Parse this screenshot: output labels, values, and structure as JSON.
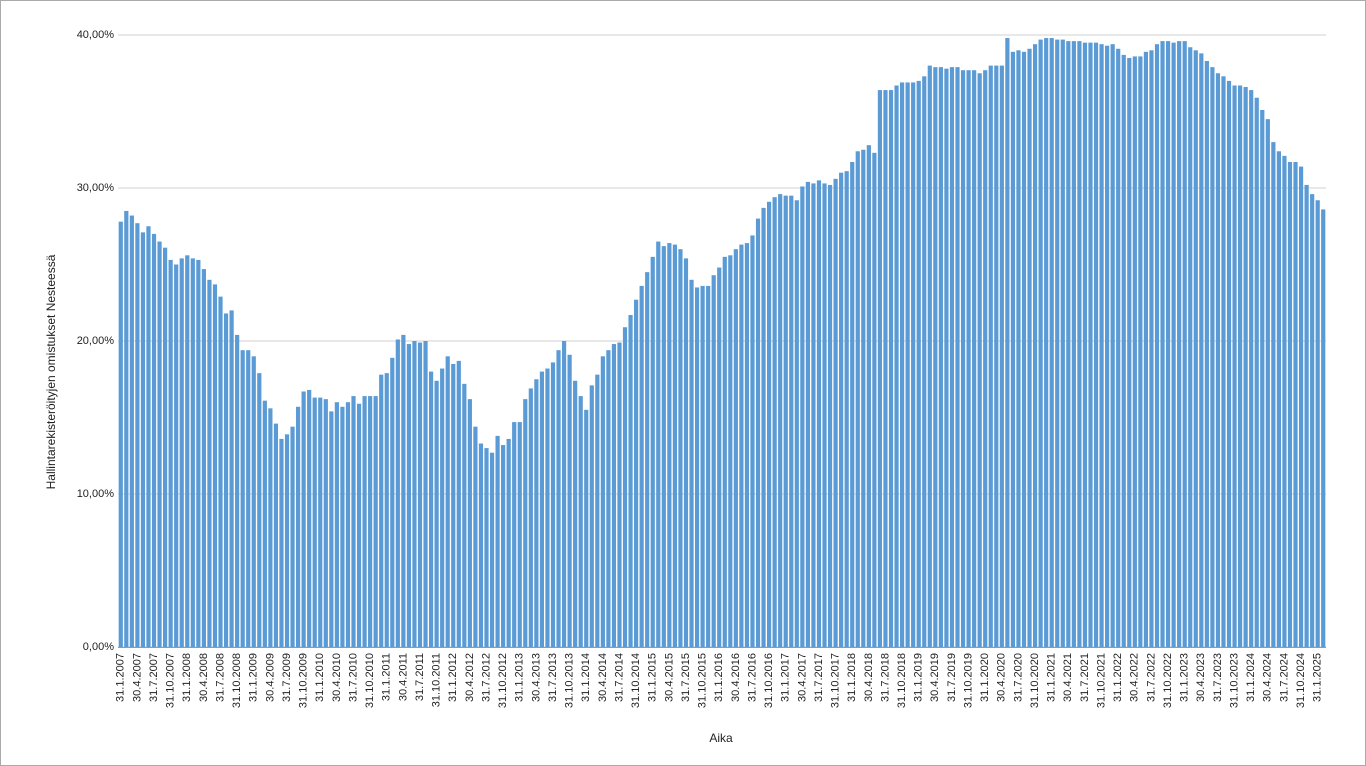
{
  "chart_data": {
    "type": "bar",
    "y_label": "Hallintarekisteröityjen omistukset Nesteessä",
    "x_label": "Aika",
    "color": "#5b9bd5",
    "grid": true,
    "ylim": [
      0,
      40
    ],
    "yticks": [
      {
        "value": 0,
        "label": "0,00%"
      },
      {
        "value": 10,
        "label": "10,00%"
      },
      {
        "value": 20,
        "label": "20,00%"
      },
      {
        "value": 30,
        "label": "30,00%"
      },
      {
        "value": 40,
        "label": "40,00%"
      }
    ],
    "categories": [
      "31.1.2007",
      null,
      null,
      "30.4.2007",
      null,
      null,
      "31.7.2007",
      null,
      null,
      "31.10.2007",
      null,
      null,
      "31.1.2008",
      null,
      null,
      "30.4.2008",
      null,
      null,
      "31.7.2008",
      null,
      null,
      "31.10.2008",
      null,
      null,
      "31.1.2009",
      null,
      null,
      "30.4.2009",
      null,
      null,
      "31.7.2009",
      null,
      null,
      "31.10.2009",
      null,
      null,
      "31.1.2010",
      null,
      null,
      "30.4.2010",
      null,
      null,
      "31.7.2010",
      null,
      null,
      "31.10.2010",
      null,
      null,
      "31.1.2011",
      null,
      null,
      "30.4.2011",
      null,
      null,
      "31.7.2011",
      null,
      null,
      "31.10.2011",
      null,
      null,
      "31.1.2012",
      null,
      null,
      "30.4.2012",
      null,
      null,
      "31.7.2012",
      null,
      null,
      "31.10.2012",
      null,
      null,
      "31.1.2013",
      null,
      null,
      "30.4.2013",
      null,
      null,
      "31.7.2013",
      null,
      null,
      "31.10.2013",
      null,
      null,
      "31.1.2014",
      null,
      null,
      "30.4.2014",
      null,
      null,
      "31.7.2014",
      null,
      null,
      "31.10.2014",
      null,
      null,
      "31.1.2015",
      null,
      null,
      "30.4.2015",
      null,
      null,
      "31.7.2015",
      null,
      null,
      "31.10.2015",
      null,
      null,
      "31.1.2016",
      null,
      null,
      "30.4.2016",
      null,
      null,
      "31.7.2016",
      null,
      null,
      "31.10.2016",
      null,
      null,
      "31.1.2017",
      null,
      null,
      "30.4.2017",
      null,
      null,
      "31.7.2017",
      null,
      null,
      "31.10.2017",
      null,
      null,
      "31.1.2018",
      null,
      null,
      "30.4.2018",
      null,
      null,
      "31.7.2018",
      null,
      null,
      "31.10.2018",
      null,
      null,
      "31.1.2019",
      null,
      null,
      "30.4.2019",
      null,
      null,
      "31.7.2019",
      null,
      null,
      "31.10.2019",
      null,
      null,
      "31.1.2020",
      null,
      null,
      "30.4.2020",
      null,
      null,
      "31.7.2020",
      null,
      null,
      "31.10.2020",
      null,
      null,
      "31.1.2021",
      null,
      null,
      "30.4.2021",
      null,
      null,
      "31.7.2021",
      null,
      null,
      "31.10.2021",
      null,
      null,
      "31.1.2022",
      null,
      null,
      "30.4.2022",
      null,
      null,
      "31.7.2022",
      null,
      null,
      "31.10.2022",
      null,
      null,
      "31.1.2023",
      null,
      null,
      "30.4.2023",
      null,
      null,
      "31.7.2023",
      null,
      null,
      "31.10.2023",
      null,
      null,
      "31.1.2024",
      null,
      null,
      "30.4.2024",
      null,
      null,
      "31.7.2024",
      null,
      null,
      "31.10.2024",
      null,
      null,
      "31.1.2025",
      null
    ],
    "values": [
      27.8,
      28.5,
      28.2,
      27.7,
      27.1,
      27.5,
      27.0,
      26.5,
      26.1,
      25.3,
      25.0,
      25.4,
      25.6,
      25.4,
      25.3,
      24.7,
      24.0,
      23.7,
      22.9,
      21.8,
      22.0,
      20.4,
      19.4,
      19.4,
      19.0,
      17.9,
      16.1,
      15.6,
      14.6,
      13.6,
      13.9,
      14.4,
      15.7,
      16.7,
      16.8,
      16.3,
      16.3,
      16.2,
      15.4,
      16.0,
      15.7,
      16.0,
      16.4,
      15.9,
      16.4,
      16.4,
      16.4,
      17.8,
      17.9,
      18.9,
      20.1,
      20.4,
      19.8,
      20.0,
      19.9,
      20.0,
      18.0,
      17.4,
      18.2,
      19.0,
      18.5,
      18.7,
      17.2,
      16.2,
      14.4,
      13.3,
      13.0,
      12.7,
      13.8,
      13.2,
      13.6,
      14.7,
      14.7,
      16.2,
      16.9,
      17.5,
      18.0,
      18.2,
      18.6,
      19.4,
      20.0,
      19.1,
      17.4,
      16.4,
      15.5,
      17.1,
      17.8,
      19.0,
      19.4,
      19.8,
      19.9,
      20.9,
      21.7,
      22.7,
      23.6,
      24.5,
      25.5,
      26.5,
      26.2,
      26.4,
      26.3,
      26.0,
      25.4,
      24.0,
      23.5,
      23.6,
      23.6,
      24.3,
      24.8,
      25.5,
      25.6,
      26.0,
      26.3,
      26.4,
      26.9,
      28.0,
      28.7,
      29.1,
      29.4,
      29.6,
      29.5,
      29.5,
      29.2,
      30.1,
      30.4,
      30.3,
      30.5,
      30.3,
      30.2,
      30.6,
      31.0,
      31.1,
      31.7,
      32.4,
      32.5,
      32.8,
      32.3,
      36.4,
      36.4,
      36.4,
      36.7,
      36.9,
      36.9,
      36.9,
      37.0,
      37.3,
      38.0,
      37.9,
      37.9,
      37.8,
      37.9,
      37.9,
      37.7,
      37.7,
      37.7,
      37.5,
      37.7,
      38.0,
      38.0,
      38.0,
      39.8,
      38.9,
      39.0,
      38.9,
      39.1,
      39.4,
      39.7,
      39.8,
      39.8,
      39.7,
      39.7,
      39.6,
      39.6,
      39.6,
      39.5,
      39.5,
      39.5,
      39.4,
      39.3,
      39.4,
      39.1,
      38.7,
      38.5,
      38.6,
      38.6,
      38.9,
      39.0,
      39.4,
      39.6,
      39.6,
      39.5,
      39.6,
      39.6,
      39.2,
      39.0,
      38.8,
      38.3,
      37.9,
      37.5,
      37.3,
      37.0,
      36.7,
      36.7,
      36.6,
      36.4,
      35.9,
      35.1,
      34.5,
      33.0,
      32.4,
      32.1,
      31.7,
      31.7,
      31.4,
      30.2,
      29.6,
      29.2,
      28.6
    ]
  }
}
